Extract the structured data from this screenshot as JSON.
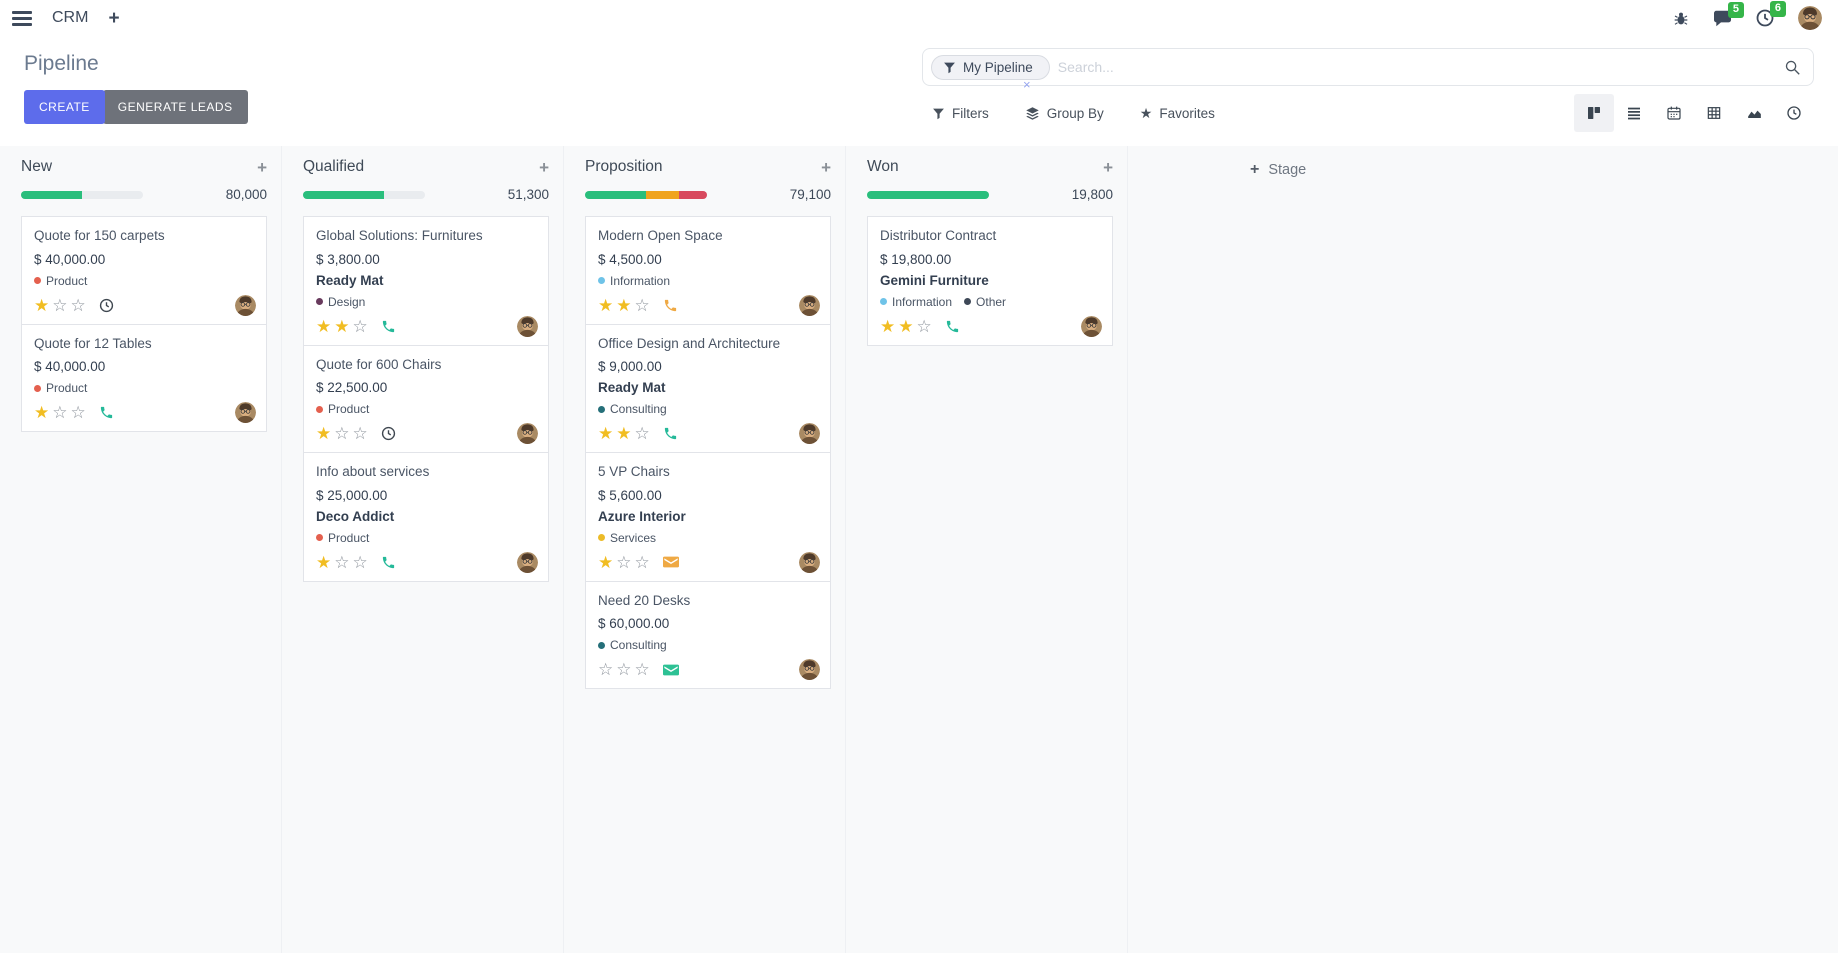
{
  "navbar": {
    "app_name": "CRM",
    "plus_label": "+",
    "messages_badge": "5",
    "activities_badge": "6"
  },
  "control_panel": {
    "title": "Pipeline",
    "create_label": "CREATE",
    "generate_leads_label": "GENERATE LEADS",
    "search": {
      "facet": "My Pipeline",
      "facet_remove": "×",
      "placeholder": "Search..."
    },
    "filters_label": "Filters",
    "group_by_label": "Group By",
    "favorites_label": "Favorites",
    "favorites_star": "★"
  },
  "icons": {
    "menu": "hamburger-icon",
    "bug": "bug-icon",
    "messages": "chat-bubble-icon",
    "activities": "clock-icon",
    "filter": "funnel-icon",
    "group_by": "layers-icon",
    "favorites": "star-icon",
    "search": "magnifier-icon",
    "views": [
      "kanban-icon",
      "list-icon",
      "calendar-icon",
      "pivot-icon",
      "graph-icon",
      "activity-clock-icon"
    ]
  },
  "colors": {
    "create_button": "#5d6ceb",
    "generate_button": "#6e727a",
    "badge_green": "#35b549",
    "progress_green": "#29be7c",
    "progress_orange": "#f0a41f",
    "progress_red": "#d8495e",
    "star_gold": "#f1bd22"
  },
  "board": {
    "max_stars": 3,
    "add_stage_label": "Stage",
    "columns": [
      {
        "name": "New",
        "total": "80,000",
        "progress": [
          {
            "color": "#29be7c",
            "pct": 50
          }
        ],
        "cards": [
          {
            "title": "Quote for 150 carpets",
            "amount": "$ 40,000.00",
            "partner": "",
            "tags": [
              {
                "label": "Product",
                "color": "#e4604e"
              }
            ],
            "stars": 1,
            "activity": {
              "type": "clock",
              "color": "#3f4750"
            }
          },
          {
            "title": "Quote for 12 Tables",
            "amount": "$ 40,000.00",
            "partner": "",
            "tags": [
              {
                "label": "Product",
                "color": "#e4604e"
              }
            ],
            "stars": 1,
            "activity": {
              "type": "phone",
              "color": "#25b999"
            }
          }
        ]
      },
      {
        "name": "Qualified",
        "total": "51,300",
        "progress": [
          {
            "color": "#29be7c",
            "pct": 66
          }
        ],
        "cards": [
          {
            "title": "Global Solutions: Furnitures",
            "amount": "$ 3,800.00",
            "partner": "Ready Mat",
            "tags": [
              {
                "label": "Design",
                "color": "#683a5d"
              }
            ],
            "stars": 2,
            "activity": {
              "type": "phone",
              "color": "#25b999"
            }
          },
          {
            "title": "Quote for 600 Chairs",
            "amount": "$ 22,500.00",
            "partner": "",
            "tags": [
              {
                "label": "Product",
                "color": "#e4604e"
              }
            ],
            "stars": 1,
            "activity": {
              "type": "clock",
              "color": "#3f4750"
            }
          },
          {
            "title": "Info about services",
            "amount": "$ 25,000.00",
            "partner": "Deco Addict",
            "tags": [
              {
                "label": "Product",
                "color": "#e4604e"
              }
            ],
            "stars": 1,
            "activity": {
              "type": "phone",
              "color": "#25b999"
            }
          }
        ]
      },
      {
        "name": "Proposition",
        "total": "79,100",
        "progress": [
          {
            "color": "#29be7c",
            "pct": 50
          },
          {
            "color": "#f0a41f",
            "pct": 27
          },
          {
            "color": "#d8495e",
            "pct": 23
          }
        ],
        "cards": [
          {
            "title": "Modern Open Space",
            "amount": "$ 4,500.00",
            "partner": "",
            "tags": [
              {
                "label": "Information",
                "color": "#6fc3e8"
              }
            ],
            "stars": 2,
            "activity": {
              "type": "phone",
              "color": "#efa944"
            }
          },
          {
            "title": "Office Design and Architecture",
            "amount": "$ 9,000.00",
            "partner": "Ready Mat",
            "tags": [
              {
                "label": "Consulting",
                "color": "#256f79"
              }
            ],
            "stars": 2,
            "activity": {
              "type": "phone",
              "color": "#25b999"
            }
          },
          {
            "title": "5 VP Chairs",
            "amount": "$ 5,600.00",
            "partner": "Azure Interior",
            "tags": [
              {
                "label": "Services",
                "color": "#ecbb28"
              }
            ],
            "stars": 1,
            "activity": {
              "type": "mail",
              "color": "#efa944"
            }
          },
          {
            "title": "Need 20 Desks",
            "amount": "$ 60,000.00",
            "partner": "",
            "tags": [
              {
                "label": "Consulting",
                "color": "#256f79"
              }
            ],
            "stars": 0,
            "activity": {
              "type": "mail",
              "color": "#2dc194"
            }
          }
        ]
      },
      {
        "name": "Won",
        "total": "19,800",
        "progress": [
          {
            "color": "#29be7c",
            "pct": 100
          }
        ],
        "cards": [
          {
            "title": "Distributor Contract",
            "amount": "$ 19,800.00",
            "partner": "Gemini Furniture",
            "tags": [
              {
                "label": "Information",
                "color": "#6fc3e8"
              },
              {
                "label": "Other",
                "color": "#3e4857"
              }
            ],
            "stars": 2,
            "activity": {
              "type": "phone",
              "color": "#25b999"
            }
          }
        ]
      }
    ]
  }
}
